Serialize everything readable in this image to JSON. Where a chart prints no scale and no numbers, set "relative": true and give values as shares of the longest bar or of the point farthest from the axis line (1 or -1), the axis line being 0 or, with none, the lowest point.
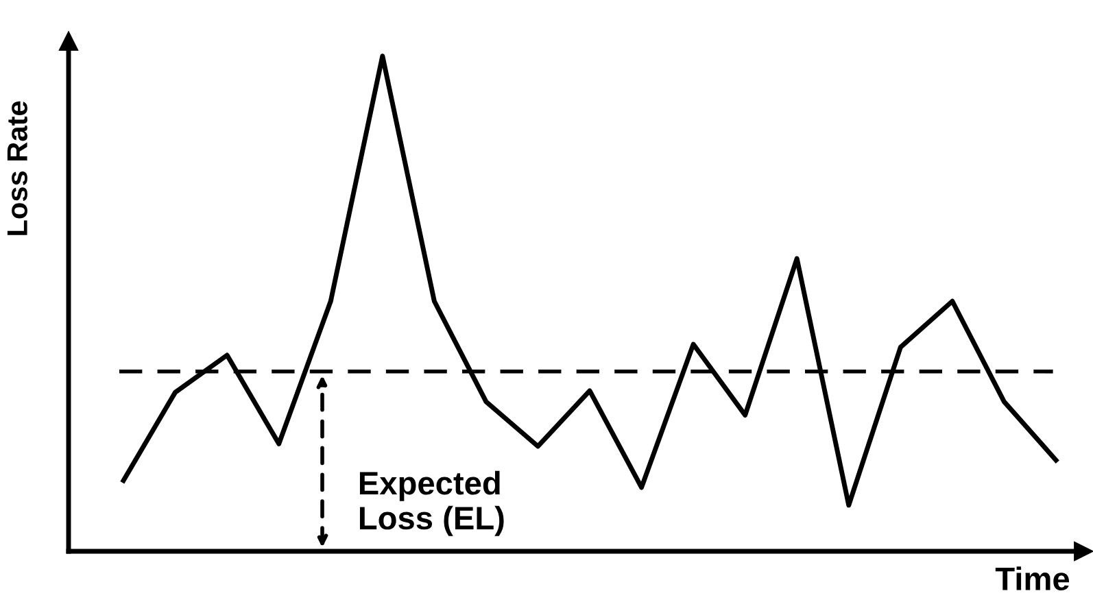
{
  "chart_data": {
    "type": "line",
    "relative": true,
    "xlabel": "Time",
    "ylabel": "Loss Rate",
    "categories": [
      null,
      null,
      null,
      null,
      null,
      null,
      null,
      null,
      null,
      null,
      null,
      null,
      null,
      null,
      null,
      null,
      null,
      null,
      null
    ],
    "series": [
      {
        "color": "#000000",
        "values": [
          0.143,
          0.321,
          0.396,
          0.217,
          0.505,
          1,
          0.505,
          0.302,
          0.212,
          0.324,
          0.129,
          0.418,
          0.275,
          0.591,
          0.093,
          0.412,
          0.505,
          0.302,
          0.184
        ]
      }
    ],
    "ref_lines": [
      {
        "axis": "y",
        "value": 0.363,
        "color": "#000000",
        "line_style": "dashed"
      }
    ],
    "annotations": [
      "Expected\nLoss (EL)"
    ],
    "legend": false,
    "marker": "none",
    "line_style": "solid"
  }
}
